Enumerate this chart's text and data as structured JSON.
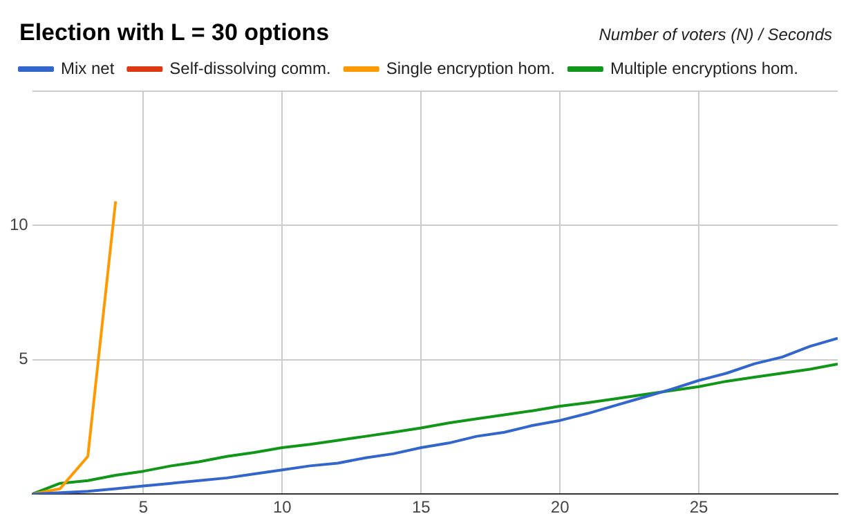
{
  "chart_data": {
    "type": "line",
    "title": "Election with L = 30 options",
    "subtitle": "Number of voters (N) / Seconds",
    "x": [
      1,
      2,
      3,
      4,
      5,
      6,
      7,
      8,
      9,
      10,
      11,
      12,
      13,
      14,
      15,
      16,
      17,
      18,
      19,
      20,
      21,
      22,
      23,
      24,
      25,
      26,
      27,
      28,
      29,
      30
    ],
    "series": [
      {
        "name": "Mix net",
        "color": "#3366cc",
        "values": [
          0,
          0.05,
          0.1,
          0.2,
          0.3,
          0.4,
          0.5,
          0.6,
          0.75,
          0.9,
          1.05,
          1.15,
          1.35,
          1.5,
          1.73,
          1.9,
          2.15,
          2.3,
          2.55,
          2.74,
          3.0,
          3.3,
          3.6,
          3.9,
          4.23,
          4.5,
          4.85,
          5.1,
          5.5,
          5.8
        ]
      },
      {
        "name": "Self-dissolving comm.",
        "color": "#dc3912",
        "values": [
          null,
          null,
          null,
          null,
          null,
          null,
          null,
          null,
          null,
          null,
          null,
          null,
          null,
          null,
          null,
          null,
          null,
          null,
          null,
          null,
          null,
          null,
          null,
          null,
          null,
          null,
          null,
          null,
          null,
          null
        ]
      },
      {
        "name": "Single encryption hom.",
        "color": "#ff9900",
        "values": [
          0,
          0.2,
          1.4,
          10.9,
          null,
          null,
          null,
          null,
          null,
          null,
          null,
          null,
          null,
          null,
          null,
          null,
          null,
          null,
          null,
          null,
          null,
          null,
          null,
          null,
          null,
          null,
          null,
          null,
          null,
          null
        ]
      },
      {
        "name": "Multiple encryptions hom.",
        "color": "#109618",
        "values": [
          0,
          0.4,
          0.5,
          0.7,
          0.85,
          1.05,
          1.2,
          1.4,
          1.55,
          1.73,
          1.85,
          2.0,
          2.15,
          2.3,
          2.46,
          2.65,
          2.8,
          2.95,
          3.1,
          3.27,
          3.4,
          3.55,
          3.7,
          3.85,
          4.0,
          4.2,
          4.35,
          4.5,
          4.65,
          4.84
        ]
      }
    ],
    "xlim": [
      1,
      30
    ],
    "xticks": [
      5,
      10,
      15,
      20,
      25
    ],
    "ylim": [
      0,
      15
    ],
    "yticks": [
      {
        "value": 0,
        "label": null
      },
      5,
      10,
      {
        "value": 15,
        "label": null
      }
    ],
    "grid": true,
    "legend": "top left",
    "marker": "none",
    "line_style": "solid"
  }
}
